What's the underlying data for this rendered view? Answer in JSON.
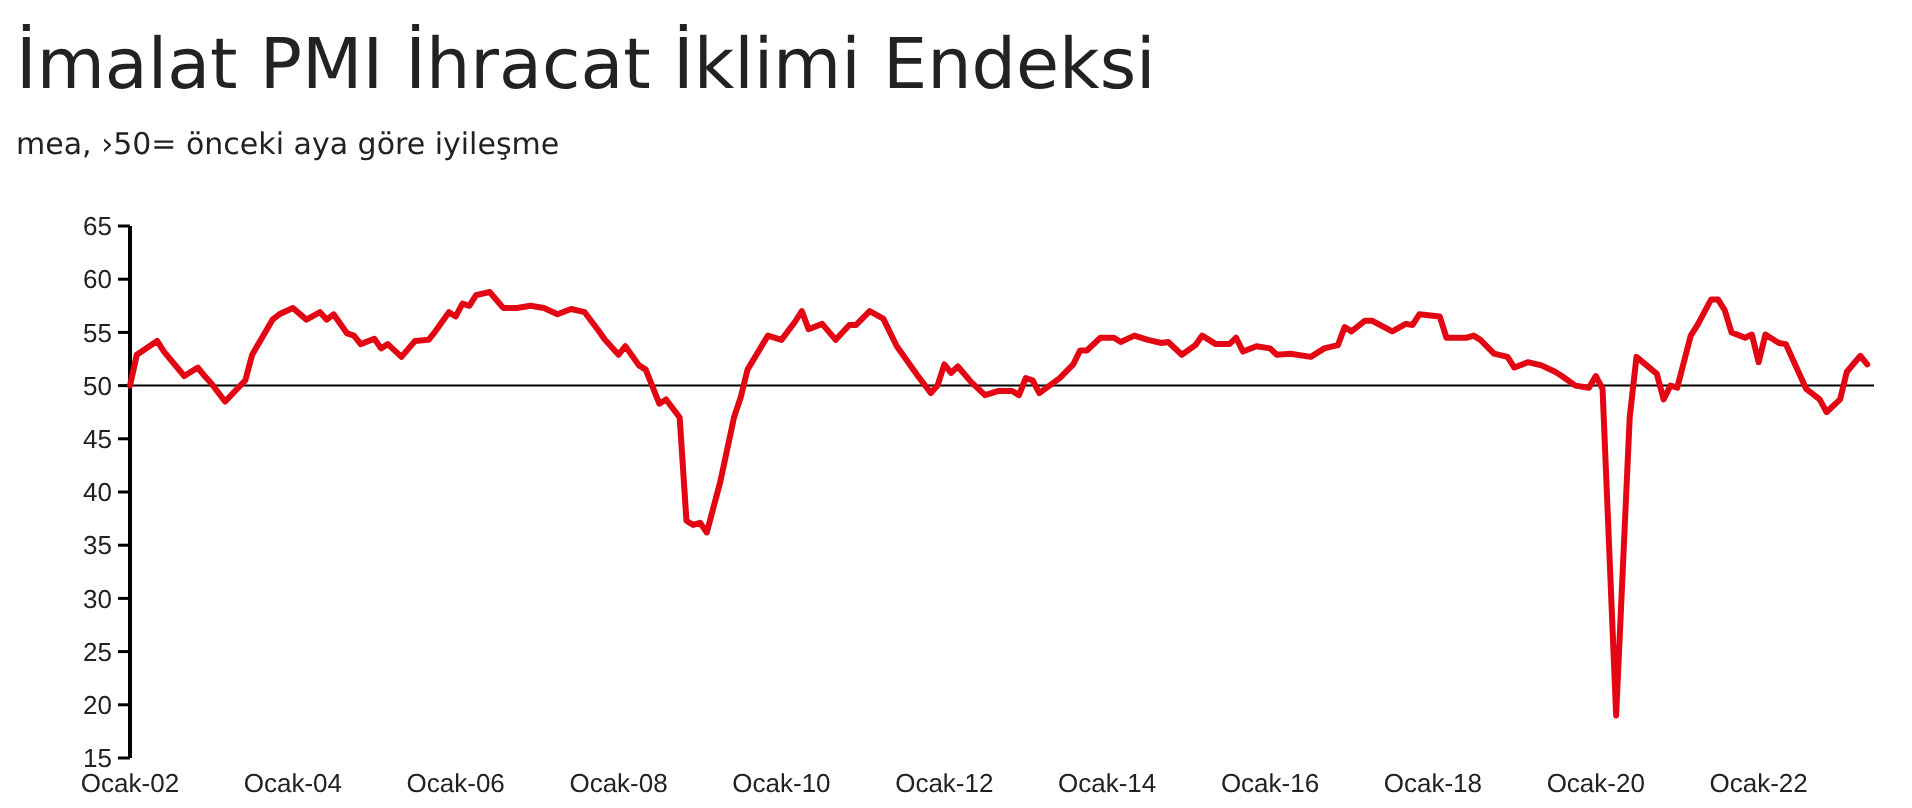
{
  "chart_data": {
    "type": "line",
    "title": "İmalat PMI İhracat İklimi Endeksi",
    "subtitle": "mea, ›50= önceki aya göre iyileşme",
    "x": [
      "2002-01",
      "2002-02",
      "2002-05",
      "2002-06",
      "2002-09",
      "2002-11",
      "2002-12",
      "2003-01",
      "2003-03",
      "2003-06",
      "2003-07",
      "2003-10",
      "2003-11",
      "2004-01",
      "2004-03",
      "2004-05",
      "2004-06",
      "2004-07",
      "2004-09",
      "2004-10",
      "2004-11",
      "2005-01",
      "2005-02",
      "2005-03",
      "2005-05",
      "2005-07",
      "2005-09",
      "2005-10",
      "2005-12",
      "2006-01",
      "2006-02",
      "2006-03",
      "2006-04",
      "2006-06",
      "2006-08",
      "2006-10",
      "2006-12",
      "2007-02",
      "2007-04",
      "2007-06",
      "2007-08",
      "2007-10",
      "2007-11",
      "2008-01",
      "2008-02",
      "2008-04",
      "2008-05",
      "2008-07",
      "2008-08",
      "2008-10",
      "2008-11",
      "2008-12",
      "2009-01",
      "2009-02",
      "2009-04",
      "2009-06",
      "2009-07",
      "2009-08",
      "2009-11",
      "2010-01",
      "2010-03",
      "2010-04",
      "2010-05",
      "2010-07",
      "2010-09",
      "2010-11",
      "2010-12",
      "2011-02",
      "2011-04",
      "2011-06",
      "2011-09",
      "2011-11",
      "2011-12",
      "2012-01",
      "2012-02",
      "2012-03",
      "2012-05",
      "2012-07",
      "2012-09",
      "2012-11",
      "2012-12",
      "2013-01",
      "2013-02",
      "2013-03",
      "2013-06",
      "2013-08",
      "2013-09",
      "2013-10",
      "2013-12",
      "2014-02",
      "2014-03",
      "2014-05",
      "2014-07",
      "2014-09",
      "2014-10",
      "2014-12",
      "2015-02",
      "2015-03",
      "2015-05",
      "2015-07",
      "2015-08",
      "2015-09",
      "2015-11",
      "2016-01",
      "2016-02",
      "2016-04",
      "2016-07",
      "2016-09",
      "2016-11",
      "2016-12",
      "2017-01",
      "2017-03",
      "2017-04",
      "2017-07",
      "2017-09",
      "2017-10",
      "2017-11",
      "2018-02",
      "2018-03",
      "2018-06",
      "2018-07",
      "2018-08",
      "2018-10",
      "2018-12",
      "2019-01",
      "2019-03",
      "2019-05",
      "2019-07",
      "2019-08",
      "2019-10",
      "2019-12",
      "2020-01",
      "2020-02",
      "2020-04",
      "2020-06",
      "2020-07",
      "2020-10",
      "2020-11",
      "2020-12",
      "2021-01",
      "2021-03",
      "2021-04",
      "2021-06",
      "2021-07",
      "2021-08",
      "2021-09",
      "2021-11",
      "2021-12",
      "2022-01",
      "2022-02",
      "2022-04",
      "2022-05",
      "2022-08",
      "2022-10",
      "2022-11",
      "2023-01",
      "2023-02",
      "2023-04",
      "2023-05"
    ],
    "series": [
      {
        "color": "#e30613",
        "values": [
          50,
          52.9,
          54.2,
          53.2,
          50.9,
          51.7,
          50.9,
          50.2,
          48.5,
          50.5,
          52.9,
          56.2,
          56.7,
          57.3,
          56.2,
          56.9,
          56.2,
          56.7,
          54.9,
          54.7,
          53.9,
          54.4,
          53.5,
          53.9,
          52.7,
          54.2,
          54.3,
          55.1,
          56.9,
          56.5,
          57.7,
          57.5,
          58.5,
          58.8,
          57.3,
          57.3,
          57.5,
          57.3,
          56.7,
          57.2,
          56.9,
          55.2,
          54.3,
          52.9,
          53.7,
          51.9,
          51.5,
          48.3,
          48.7,
          47,
          37.3,
          36.9,
          37.1,
          36.2,
          41,
          47,
          48.9,
          51.5,
          54.7,
          54.3,
          56,
          57,
          55.3,
          55.8,
          54.3,
          55.7,
          55.7,
          57,
          56.3,
          53.7,
          51,
          49.3,
          50,
          52,
          51.2,
          51.8,
          50.3,
          49.1,
          49.5,
          49.5,
          49.1,
          50.7,
          50.5,
          49.3,
          50.7,
          52,
          53.3,
          53.3,
          54.5,
          54.5,
          54.1,
          54.7,
          54.3,
          54,
          54.1,
          52.9,
          53.8,
          54.7,
          53.9,
          53.9,
          54.5,
          53.2,
          53.7,
          53.5,
          52.9,
          53,
          52.7,
          53.5,
          53.8,
          55.5,
          55.1,
          56.1,
          56.1,
          55.1,
          55.8,
          55.7,
          56.7,
          56.5,
          54.5,
          54.5,
          54.7,
          54.3,
          53,
          52.7,
          51.7,
          52.2,
          51.9,
          51.3,
          50.9,
          50,
          49.8,
          50.9,
          49.7,
          19,
          47,
          52.7,
          51.1,
          48.7,
          50,
          49.8,
          54.7,
          55.7,
          58.1,
          58.1,
          57.1,
          55,
          54.5,
          54.8,
          52.2,
          54.8,
          54,
          53.9,
          49.7,
          48.7,
          47.5,
          48.7,
          51.3,
          52.8,
          52
        ]
      }
    ],
    "xlim": [
      "2002-01",
      "2023-06"
    ],
    "xticks": [
      {
        "value": "2002-01",
        "label": "Ocak-02"
      },
      {
        "value": "2004-01",
        "label": "Ocak-04"
      },
      {
        "value": "2006-01",
        "label": "Ocak-06"
      },
      {
        "value": "2008-01",
        "label": "Ocak-08"
      },
      {
        "value": "2010-01",
        "label": "Ocak-10"
      },
      {
        "value": "2012-01",
        "label": "Ocak-12"
      },
      {
        "value": "2014-01",
        "label": "Ocak-14"
      },
      {
        "value": "2016-01",
        "label": "Ocak-16"
      },
      {
        "value": "2018-01",
        "label": "Ocak-18"
      },
      {
        "value": "2020-01",
        "label": "Ocak-20"
      },
      {
        "value": "2022-01",
        "label": "Ocak-22"
      }
    ],
    "ylim": [
      15,
      65
    ],
    "yticks": [
      15,
      20,
      25,
      30,
      35,
      40,
      45,
      50,
      55,
      60,
      65
    ],
    "ref_lines": [
      {
        "axis": "y",
        "value": 50,
        "color": "#000000"
      }
    ]
  }
}
